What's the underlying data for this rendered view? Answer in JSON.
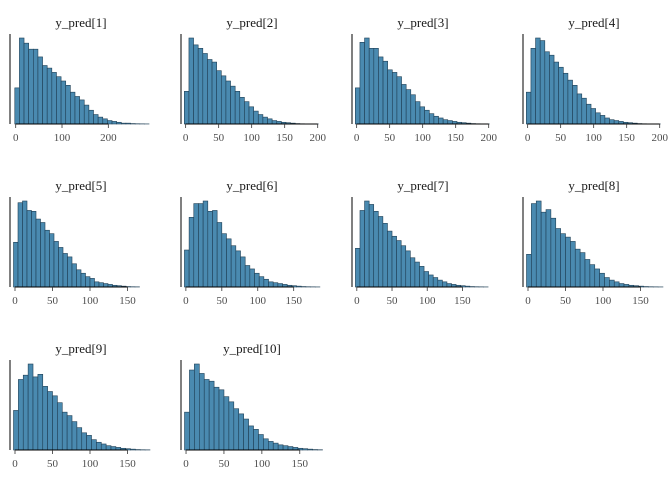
{
  "chart_data": [
    {
      "type": "bar",
      "title": "y_pred[1]",
      "xticks": [
        0,
        100,
        200
      ],
      "xlim": [
        -8,
        290
      ],
      "bin_start": -2,
      "bin_width": 10,
      "values": [
        42,
        100,
        94,
        87,
        87,
        78,
        68,
        65,
        60,
        55,
        50,
        45,
        37,
        32,
        28,
        22,
        16,
        11,
        8,
        6,
        4,
        3,
        2,
        1,
        1,
        0.5,
        0.3,
        0.2,
        0.1
      ]
    },
    {
      "type": "bar",
      "title": "y_pred[2]",
      "xticks": [
        0,
        50,
        100,
        150,
        200
      ],
      "xlim": [
        -4,
        205
      ],
      "bin_start": -2,
      "bin_width": 7,
      "values": [
        38,
        100,
        92,
        88,
        82,
        75,
        72,
        62,
        56,
        50,
        44,
        38,
        31,
        26,
        20,
        15,
        11,
        8,
        6,
        4,
        3,
        2,
        1.5,
        1,
        0.5,
        0.3,
        0.2,
        0.1,
        0.1
      ]
    },
    {
      "type": "bar",
      "title": "y_pred[3]",
      "xticks": [
        0,
        50,
        100,
        150,
        200
      ],
      "xlim": [
        -4,
        205
      ],
      "bin_start": -2,
      "bin_width": 7,
      "values": [
        42,
        95,
        100,
        88,
        88,
        78,
        73,
        63,
        60,
        55,
        46,
        40,
        34,
        26,
        20,
        16,
        12,
        9,
        7,
        5,
        4,
        3,
        2,
        1.5,
        1,
        0.5,
        0.3,
        0.2,
        0.1
      ]
    },
    {
      "type": "bar",
      "title": "y_pred[4]",
      "xticks": [
        0,
        50,
        100,
        150,
        200
      ],
      "xlim": [
        -4,
        205
      ],
      "bin_start": -2,
      "bin_width": 7,
      "values": [
        37,
        88,
        100,
        97,
        84,
        80,
        72,
        66,
        59,
        51,
        45,
        35,
        30,
        23,
        18,
        13,
        10,
        7,
        5,
        4,
        3,
        2,
        1.5,
        1,
        0.5,
        0.3,
        0.2,
        0.1,
        0.1
      ]
    },
    {
      "type": "bar",
      "title": "y_pred[5]",
      "xticks": [
        0,
        50,
        100,
        150
      ],
      "xlim": [
        -4,
        180
      ],
      "bin_start": -2,
      "bin_width": 6,
      "values": [
        52,
        98,
        100,
        89,
        88,
        79,
        75,
        66,
        62,
        53,
        46,
        39,
        35,
        27,
        20,
        16,
        12,
        10,
        6,
        5,
        4,
        3,
        2,
        1.5,
        1,
        0.5,
        0.3,
        0.2
      ]
    },
    {
      "type": "bar",
      "title": "y_pred[6]",
      "xticks": [
        0,
        50,
        100,
        150
      ],
      "xlim": [
        -4,
        188
      ],
      "bin_start": -2,
      "bin_width": 6.5,
      "values": [
        43,
        81,
        97,
        97,
        100,
        88,
        89,
        75,
        62,
        56,
        48,
        42,
        35,
        25,
        21,
        16,
        12,
        9,
        6,
        5,
        4,
        3,
        2,
        1.5,
        1,
        0.5,
        0.3,
        0.2,
        0.1
      ]
    },
    {
      "type": "bar",
      "title": "y_pred[7]",
      "xticks": [
        0,
        50,
        100,
        150
      ],
      "xlim": [
        -4,
        192
      ],
      "bin_start": -2,
      "bin_width": 6.5,
      "values": [
        45,
        89,
        100,
        96,
        88,
        82,
        74,
        65,
        59,
        54,
        48,
        42,
        34,
        29,
        24,
        18,
        14,
        11,
        8,
        6,
        4,
        3,
        2,
        1.5,
        1,
        0.5,
        0.3,
        0.2,
        0.1
      ]
    },
    {
      "type": "bar",
      "title": "y_pred[8]",
      "xticks": [
        0,
        50,
        100,
        150
      ],
      "xlim": [
        -4,
        180
      ],
      "bin_start": -2,
      "bin_width": 6.5,
      "values": [
        38,
        97,
        100,
        87,
        90,
        80,
        68,
        62,
        58,
        53,
        44,
        40,
        32,
        26,
        21,
        16,
        11,
        8,
        6,
        4,
        3,
        2,
        1.5,
        1,
        0.5,
        0.3,
        0.2,
        0.1
      ]
    },
    {
      "type": "bar",
      "title": "y_pred[9]",
      "xticks": [
        0,
        50,
        100,
        150
      ],
      "xlim": [
        -4,
        180
      ],
      "bin_start": -2,
      "bin_width": 6.5,
      "values": [
        46,
        82,
        87,
        100,
        85,
        88,
        74,
        68,
        63,
        55,
        44,
        40,
        33,
        26,
        20,
        17,
        12,
        9,
        7,
        5,
        4,
        3,
        2,
        1.5,
        1,
        0.5,
        0.3,
        0.2
      ]
    },
    {
      "type": "bar",
      "title": "y_pred[10]",
      "xticks": [
        0,
        50,
        100,
        150
      ],
      "xlim": [
        -4,
        178
      ],
      "bin_start": -2,
      "bin_width": 6.5,
      "values": [
        44,
        93,
        100,
        89,
        82,
        80,
        73,
        70,
        62,
        56,
        48,
        42,
        36,
        28,
        24,
        18,
        13,
        10,
        8,
        6,
        5,
        4,
        3,
        2,
        1.5,
        1,
        0.5,
        0.3
      ]
    }
  ]
}
